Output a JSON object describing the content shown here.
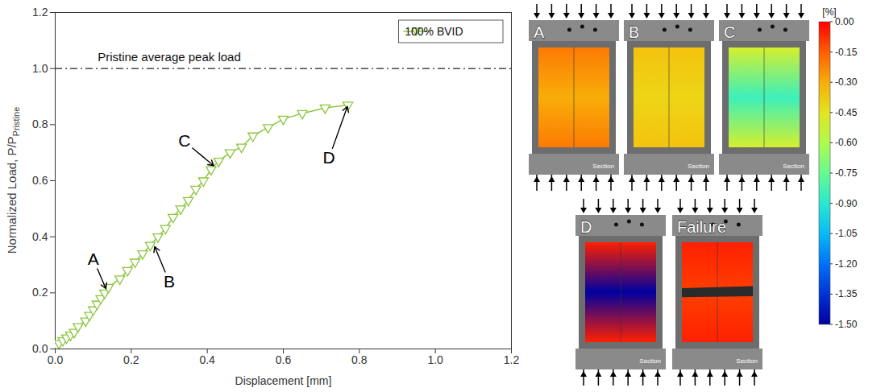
{
  "chart_data": [
    {
      "type": "line",
      "xlabel": "Displacement [mm]",
      "ylabel": "Normalized Load, P/P",
      "ylabel_subscript": "Pristine",
      "xlim": [
        0,
        1.2
      ],
      "xticks": [
        0,
        0.2,
        0.4,
        0.6,
        0.8,
        1,
        1.2
      ],
      "ylim": [
        0,
        1.2
      ],
      "yticks": [
        0,
        0.2,
        0.4,
        0.6,
        0.8,
        1,
        1.2
      ],
      "grid": false,
      "legend": "top-right",
      "series": [
        {
          "name": "100% BVID",
          "color": "#8cc63f",
          "marker": "triangle-down",
          "line_style": "solid",
          "x": [
            0,
            0.005,
            0.01,
            0.02,
            0.03,
            0.04,
            0.05,
            0.06,
            0.08,
            0.09,
            0.1,
            0.11,
            0.12,
            0.13,
            0.14,
            0.17,
            0.19,
            0.21,
            0.23,
            0.25,
            0.27,
            0.29,
            0.31,
            0.33,
            0.35,
            0.37,
            0.39,
            0.41,
            0.43,
            0.46,
            0.49,
            0.52,
            0.56,
            0.6,
            0.65,
            0.71,
            0.77
          ],
          "values": [
            0,
            0.01,
            0.02,
            0.03,
            0.04,
            0.05,
            0.06,
            0.08,
            0.1,
            0.12,
            0.14,
            0.16,
            0.18,
            0.2,
            0.22,
            0.25,
            0.28,
            0.31,
            0.34,
            0.37,
            0.4,
            0.43,
            0.47,
            0.5,
            0.53,
            0.57,
            0.6,
            0.64,
            0.67,
            0.7,
            0.72,
            0.76,
            0.79,
            0.82,
            0.84,
            0.86,
            0.87
          ]
        }
      ],
      "reference_line": {
        "y": 1,
        "text": "Pristine average peak load",
        "line_style": "dashdot",
        "text_x": 0.3,
        "text_y": 1.04
      },
      "annotations": [
        {
          "text": "A",
          "x": 0.135,
          "y": 0.21,
          "text_x": 0.1,
          "text_y": 0.32
        },
        {
          "text": "B",
          "x": 0.26,
          "y": 0.37,
          "text_x": 0.3,
          "text_y": 0.24
        },
        {
          "text": "C",
          "x": 0.42,
          "y": 0.65,
          "text_x": 0.34,
          "text_y": 0.74
        },
        {
          "text": "D",
          "x": 0.77,
          "y": 0.87,
          "text_x": 0.72,
          "text_y": 0.68
        }
      ]
    },
    {
      "type": "image_panels",
      "panel_note": "Section",
      "panels": [
        {
          "label": "A",
          "edge_strain": -0.2,
          "center_strain": -0.3
        },
        {
          "label": "B",
          "edge_strain": -0.35,
          "center_strain": -0.4
        },
        {
          "label": "C",
          "edge_strain": -0.5,
          "center_strain": -0.85
        },
        {
          "label": "D",
          "edge_strain": -0.05,
          "center_strain": -1.5
        },
        {
          "label": "Failure",
          "edge_strain": -0.05,
          "center_strain": -0.1
        }
      ],
      "colorbar": {
        "title": "[%]",
        "range": [
          -1.5,
          0
        ],
        "ticks": [
          {
            "value": 0,
            "label": "0.00"
          },
          {
            "value": -0.15,
            "label": "-0.15"
          },
          {
            "value": -0.3,
            "label": "-0.30"
          },
          {
            "value": -0.45,
            "label": "-0.45"
          },
          {
            "value": -0.6,
            "label": "-0.60"
          },
          {
            "value": -0.75,
            "label": "-0.75"
          },
          {
            "value": -0.9,
            "label": "-0.90"
          },
          {
            "value": -1.05,
            "label": "-1.05"
          },
          {
            "value": -1.2,
            "label": "-1.20"
          },
          {
            "value": -1.35,
            "label": "-1.35"
          },
          {
            "value": -1.5,
            "label": "-1.50"
          }
        ]
      }
    }
  ]
}
